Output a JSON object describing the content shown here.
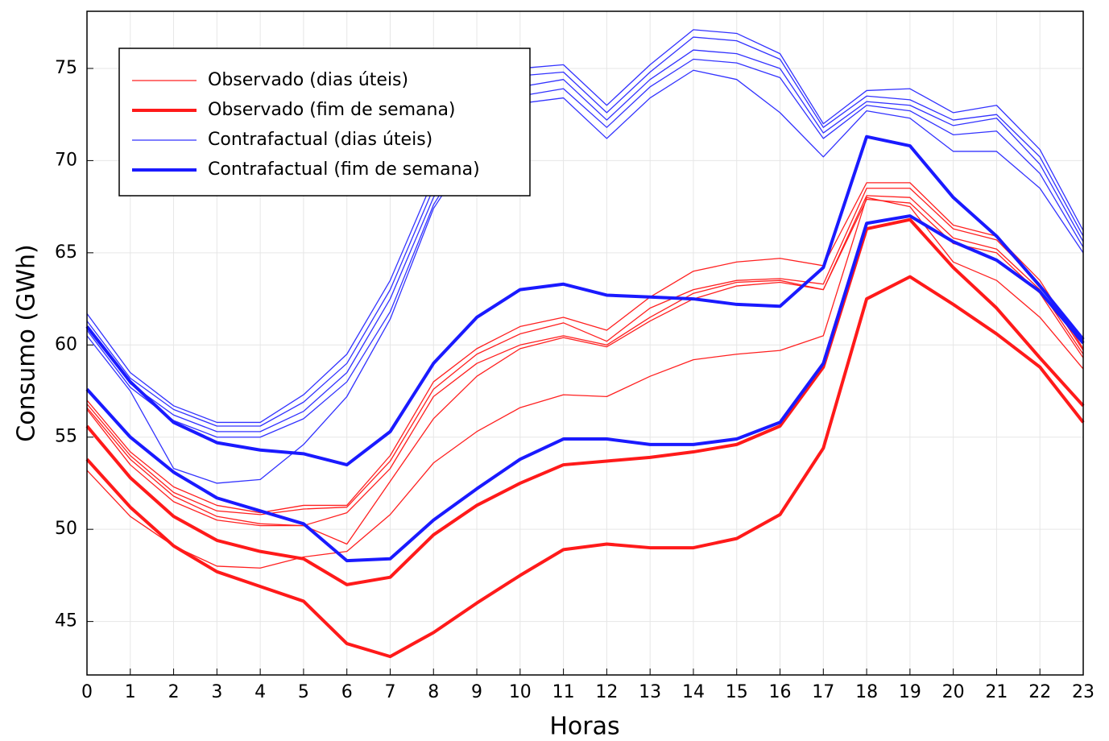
{
  "chart_data": {
    "type": "line",
    "x_label": "Horas",
    "y_label": "Consumo (GWh)",
    "x": [
      0,
      1,
      2,
      3,
      4,
      5,
      6,
      7,
      8,
      9,
      10,
      11,
      12,
      13,
      14,
      15,
      16,
      17,
      18,
      19,
      20,
      21,
      22,
      23
    ],
    "xlim": [
      0,
      23
    ],
    "xticks": [
      0,
      1,
      2,
      3,
      4,
      5,
      6,
      7,
      8,
      9,
      10,
      11,
      12,
      13,
      14,
      15,
      16,
      17,
      18,
      19,
      20,
      21,
      22,
      23
    ],
    "ylim": [
      42.1,
      78.1
    ],
    "yticks": [
      45,
      50,
      55,
      60,
      65,
      70,
      75
    ],
    "grid": true,
    "legend": "top-left",
    "series": [
      {
        "name": "Observado (dias úteis)",
        "color": "#ff2020",
        "width": 1.3,
        "lines": [
          [
            57.0,
            54.2,
            52.3,
            51.3,
            50.9,
            51.3,
            51.3,
            54.0,
            58.0,
            59.8,
            61.0,
            61.5,
            60.8,
            62.6,
            64.0,
            64.5,
            64.7,
            64.3,
            68.8,
            68.8,
            66.5,
            65.9,
            63.5,
            59.8
          ],
          [
            56.8,
            54.0,
            52.0,
            51.0,
            50.8,
            51.1,
            51.2,
            53.7,
            57.6,
            59.5,
            60.6,
            61.2,
            60.2,
            62.0,
            63.0,
            63.5,
            63.6,
            63.3,
            68.5,
            68.5,
            66.3,
            65.7,
            63.3,
            59.7
          ],
          [
            56.6,
            53.8,
            51.8,
            50.7,
            50.3,
            50.2,
            50.9,
            53.3,
            57.2,
            59.0,
            60.0,
            60.5,
            60.0,
            61.5,
            62.8,
            63.4,
            63.5,
            63.0,
            68.1,
            68.0,
            65.8,
            65.2,
            63.0,
            59.5
          ],
          [
            56.5,
            53.5,
            51.5,
            50.5,
            50.2,
            50.2,
            49.2,
            52.6,
            56.0,
            58.3,
            59.8,
            60.4,
            59.9,
            61.3,
            62.5,
            63.2,
            63.4,
            63.0,
            67.9,
            67.7,
            65.5,
            65.0,
            62.8,
            59.3
          ],
          [
            53.2,
            50.7,
            49.1,
            48.0,
            47.9,
            48.5,
            48.8,
            50.8,
            53.6,
            55.3,
            56.6,
            57.3,
            57.2,
            58.3,
            59.2,
            59.5,
            59.7,
            60.5,
            68.0,
            67.5,
            64.5,
            63.5,
            61.5,
            58.7
          ]
        ]
      },
      {
        "name": "Observado (fim de semana)",
        "color": "#ff1a1a",
        "width": 4,
        "lines": [
          [
            55.6,
            52.8,
            50.7,
            49.4,
            48.8,
            48.4,
            47.0,
            47.4,
            49.7,
            51.3,
            52.5,
            53.5,
            53.7,
            53.9,
            54.2,
            54.6,
            55.6,
            58.8,
            66.3,
            66.8,
            64.2,
            62.0,
            59.3,
            56.7
          ],
          [
            53.8,
            51.2,
            49.1,
            47.7,
            46.9,
            46.1,
            43.8,
            43.1,
            44.4,
            46.0,
            47.5,
            48.9,
            49.2,
            49.0,
            49.0,
            49.5,
            50.8,
            54.4,
            62.5,
            63.7,
            62.2,
            60.6,
            58.8,
            55.8
          ]
        ]
      },
      {
        "name": "Contrafactual (dias úteis)",
        "color": "#3333ff",
        "width": 1.3,
        "lines": [
          [
            61.7,
            58.5,
            56.7,
            55.8,
            55.8,
            57.3,
            59.5,
            63.5,
            69.0,
            72.5,
            75.0,
            75.2,
            73.0,
            75.2,
            77.1,
            76.9,
            75.8,
            72.0,
            73.8,
            73.9,
            72.6,
            73.0,
            70.6,
            66.2
          ],
          [
            61.3,
            58.2,
            56.5,
            55.6,
            55.6,
            56.9,
            59.0,
            63.0,
            68.5,
            72.2,
            74.6,
            74.8,
            72.6,
            74.8,
            76.7,
            76.5,
            75.5,
            71.8,
            73.5,
            73.3,
            72.2,
            72.5,
            70.2,
            65.9
          ],
          [
            61.0,
            57.9,
            56.2,
            55.3,
            55.3,
            56.4,
            58.5,
            62.5,
            68.0,
            71.8,
            74.0,
            74.4,
            72.2,
            74.4,
            76.0,
            75.8,
            75.0,
            71.5,
            73.2,
            73.0,
            71.9,
            72.3,
            69.8,
            65.6
          ],
          [
            60.8,
            57.7,
            55.9,
            55.0,
            55.0,
            56.0,
            58.0,
            61.8,
            67.6,
            71.4,
            73.5,
            73.9,
            71.8,
            74.0,
            75.5,
            75.3,
            74.5,
            71.2,
            73.0,
            72.7,
            71.4,
            71.6,
            69.3,
            65.3
          ],
          [
            60.5,
            57.5,
            53.3,
            52.5,
            52.7,
            54.6,
            57.2,
            61.4,
            67.4,
            71.0,
            73.1,
            73.4,
            71.2,
            73.4,
            74.9,
            74.4,
            72.6,
            70.2,
            72.7,
            72.3,
            70.5,
            70.5,
            68.5,
            65.0
          ]
        ]
      },
      {
        "name": "Contrafactual (fim de semana)",
        "color": "#1a1aff",
        "width": 4,
        "lines": [
          [
            61.0,
            58.0,
            55.8,
            54.7,
            54.3,
            54.1,
            53.5,
            55.3,
            59.0,
            61.5,
            63.0,
            63.3,
            62.7,
            62.6,
            62.5,
            62.2,
            62.1,
            64.2,
            71.3,
            70.8,
            68.0,
            65.9,
            63.2,
            60.3
          ],
          [
            57.6,
            55.0,
            53.1,
            51.7,
            51.0,
            50.3,
            48.3,
            48.4,
            50.5,
            52.2,
            53.8,
            54.9,
            54.9,
            54.6,
            54.6,
            54.9,
            55.8,
            59.0,
            66.6,
            67.0,
            65.6,
            64.6,
            62.9,
            60.1
          ]
        ]
      }
    ]
  }
}
